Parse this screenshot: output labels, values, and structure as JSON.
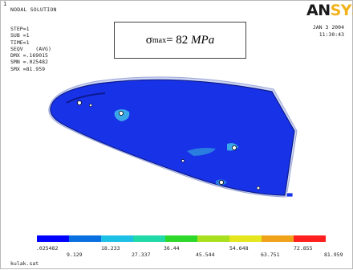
{
  "header": {
    "corner_mark": "1",
    "title": "NODAL SOLUTION",
    "info_lines": [
      "STEP=1",
      "SUB =1",
      "TIME=1",
      "SEQV    (AVG)",
      "DMX =.169015",
      "SMN =.025482",
      "SMX =81.959"
    ],
    "logo_part1": "AN",
    "logo_part2": "SYS",
    "date": "JAN  3 2004",
    "time": "11:30:43"
  },
  "annotation": {
    "sigma_symbol": "σ",
    "sigma_sub": "max",
    "sigma_eq": "= 82 ",
    "sigma_unit": "MPa"
  },
  "legend": {
    "colors": [
      "#0000ff",
      "#0a6fe0",
      "#1fc0e6",
      "#1fd9a8",
      "#2ed82a",
      "#a8e01f",
      "#e6e61f",
      "#f0a21a",
      "#ff1f1f"
    ],
    "top_labels": [
      ".025482",
      "18.233",
      "36.44",
      "54.648",
      "72.855"
    ],
    "bottom_labels": [
      "9.129",
      "27.337",
      "45.544",
      "63.751",
      "81.959"
    ]
  },
  "footer": {
    "filename": "kulak.sat"
  },
  "colors": {
    "mesh_blue": "#1832e8",
    "mesh_edge": "#0b1a8c",
    "hotspot": "#3aa8e8"
  },
  "icons": {
    "logo_glyph": "ansys-logo"
  }
}
